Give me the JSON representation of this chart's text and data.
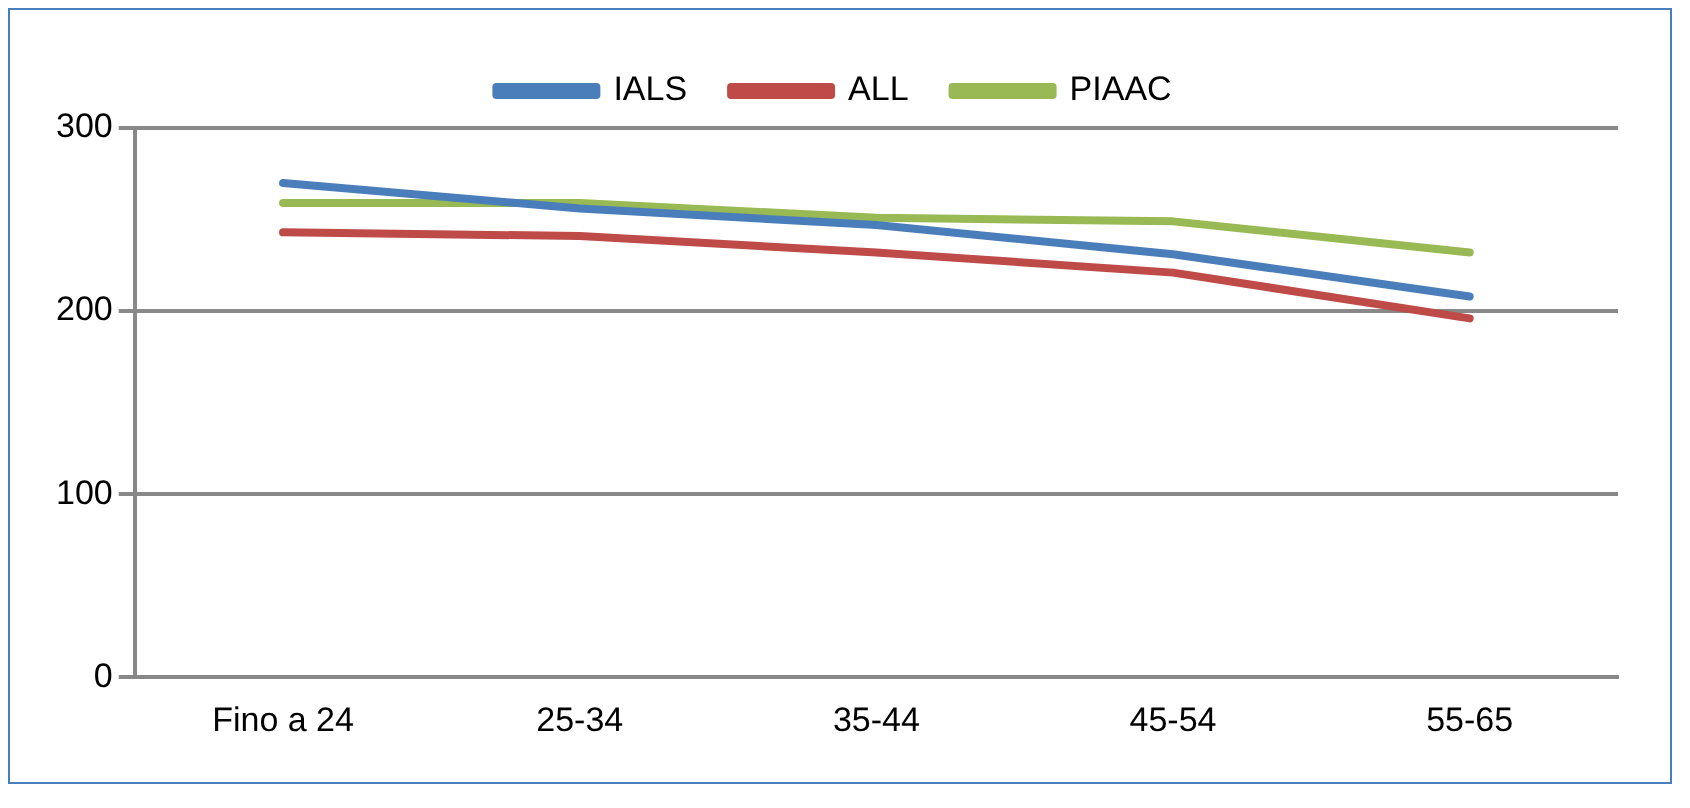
{
  "chart_data": {
    "type": "line",
    "categories": [
      "Fino a 24",
      "25-34",
      "35-44",
      "45-54",
      "55-65"
    ],
    "series": [
      {
        "name": "IALS",
        "color": "#4a7ebb",
        "values": [
          270,
          256,
          247,
          231,
          208
        ]
      },
      {
        "name": "ALL",
        "color": "#be4b48",
        "values": [
          243,
          241,
          232,
          221,
          196
        ]
      },
      {
        "name": "PIAAC",
        "color": "#98b954",
        "values": [
          259,
          259,
          251,
          249,
          232
        ]
      }
    ],
    "ylim": [
      0,
      300
    ],
    "yticks": [
      0,
      100,
      200,
      300
    ],
    "grid": "y",
    "legend": "top",
    "marker": "none",
    "line_style": "solid"
  }
}
